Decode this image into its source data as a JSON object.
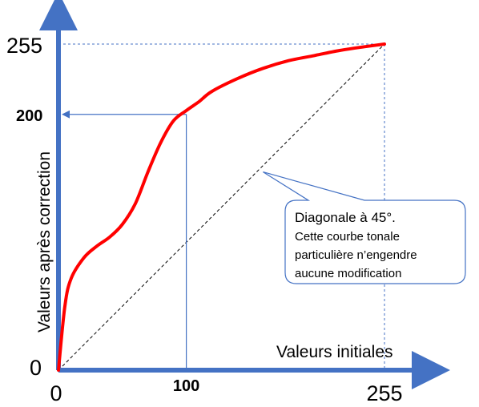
{
  "chart_data": {
    "type": "line",
    "title": "",
    "xlabel": "Valeurs initiales",
    "ylabel": "Valeurs après correction",
    "xlim": [
      0,
      255
    ],
    "ylim": [
      0,
      255
    ],
    "x_ticks": [
      "0",
      "100",
      "255"
    ],
    "y_ticks": [
      "0",
      "200",
      "255"
    ],
    "grid": false,
    "colors": {
      "curve": "#ff0000",
      "axes": "#4472c4",
      "guides": "#4472c4",
      "diagonal": "#000000"
    },
    "series": [
      {
        "x": [
          0,
          5,
          10,
          20,
          30,
          40,
          50,
          60,
          70,
          80,
          90,
          100,
          110,
          120,
          140,
          160,
          180,
          200,
          220,
          240,
          255
        ],
        "y": [
          0,
          50,
          72,
          88,
          97,
          104,
          114,
          130,
          155,
          178,
          195,
          203,
          210,
          218,
          228,
          236,
          242,
          246,
          250,
          253,
          255
        ]
      },
      {
        "x": [
          0,
          255
        ],
        "y": [
          0,
          255
        ]
      }
    ],
    "highlight": {
      "x": 100,
      "y": 200
    },
    "annotation": {
      "lines": [
        "Diagonale à 45°.",
        "Cette courbe tonale",
        "particulière n’engendre",
        "aucune modification"
      ],
      "x": 160,
      "y": 155
    }
  }
}
